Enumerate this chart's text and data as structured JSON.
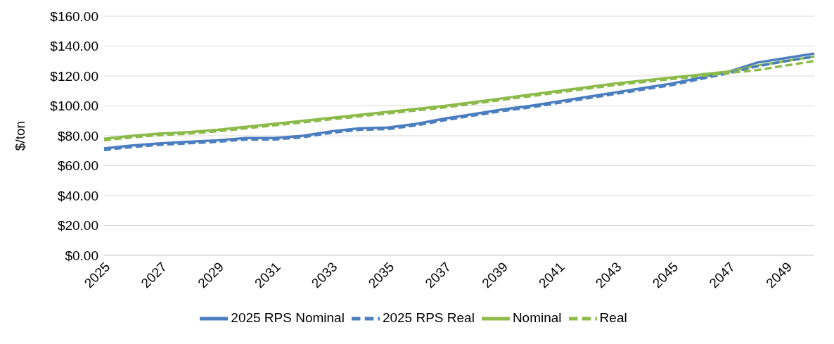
{
  "chart_data": {
    "type": "line",
    "ylabel": "$/ton",
    "categories": [
      "2025",
      null,
      "2027",
      null,
      "2029",
      null,
      "2031",
      null,
      "2033",
      null,
      "2035",
      null,
      "2037",
      null,
      "2039",
      null,
      "2041",
      null,
      "2043",
      null,
      "2045",
      null,
      "2047",
      null,
      "2049",
      null
    ],
    "ylim": [
      0,
      160
    ],
    "yticks": [
      {
        "value": 0,
        "label": "$0.00"
      },
      {
        "value": 20,
        "label": "$20.00"
      },
      {
        "value": 40,
        "label": "$40.00"
      },
      {
        "value": 60,
        "label": "$60.00"
      },
      {
        "value": 80,
        "label": "$80.00"
      },
      {
        "value": 100,
        "label": "$100.00"
      },
      {
        "value": 120,
        "label": "$120.00"
      },
      {
        "value": 140,
        "label": "$140.00"
      },
      {
        "value": 160,
        "label": "$160.00"
      }
    ],
    "grid": "y",
    "legend": "bottom",
    "marker": "none",
    "series": [
      {
        "name": "2025 RPS Nominal",
        "color": "#4a7ebf",
        "line_style": "solid",
        "values": [
          71.5,
          73.5,
          75,
          76,
          77,
          78.5,
          78.5,
          80,
          83,
          85,
          85.5,
          88,
          91.5,
          94.5,
          97.5,
          100,
          103,
          106,
          109,
          112,
          115,
          119,
          123,
          129,
          132,
          135
        ]
      },
      {
        "name": "Nominal",
        "color": "#8cbb4a",
        "line_style": "solid",
        "values": [
          78,
          80,
          81.5,
          82.5,
          84,
          86,
          88,
          90,
          92,
          94,
          96,
          98,
          100,
          102.5,
          105,
          107.5,
          110,
          112.5,
          115,
          117,
          119,
          121,
          123,
          127,
          130,
          133
        ]
      },
      {
        "name": "2025 RPS Real",
        "color": "#4a7ebf",
        "line_style": "dashed",
        "values": [
          70.5,
          72.5,
          74,
          75,
          76,
          77.5,
          77.5,
          79,
          82,
          84,
          84.5,
          87,
          90.5,
          93.5,
          96.5,
          99,
          102,
          105,
          108,
          111,
          114,
          118,
          122,
          126.5,
          130,
          133
        ]
      },
      {
        "name": "Real",
        "color": "#8cbb4a",
        "line_style": "dashed",
        "values": [
          77,
          79,
          80.5,
          81.5,
          83,
          85,
          87,
          89,
          91,
          93,
          95,
          97,
          99,
          101.5,
          104,
          106.5,
          109,
          111.5,
          114,
          116,
          118,
          120,
          122,
          124,
          127,
          130
        ]
      }
    ]
  }
}
